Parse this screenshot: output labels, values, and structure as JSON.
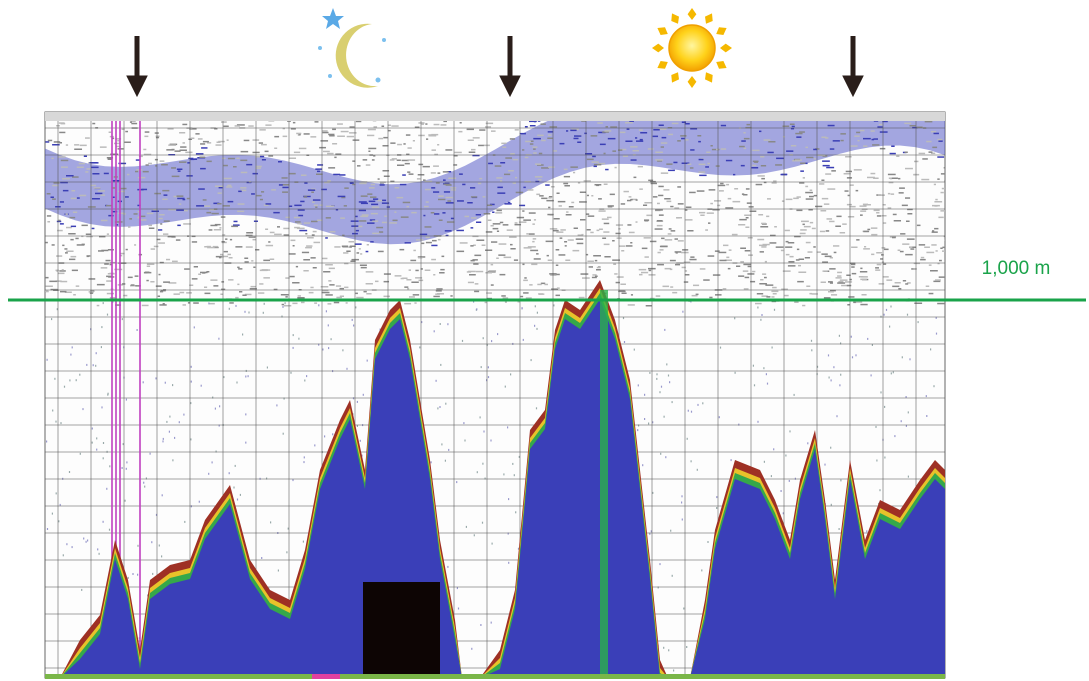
{
  "annotation": {
    "label": "1,000 m"
  }
}
